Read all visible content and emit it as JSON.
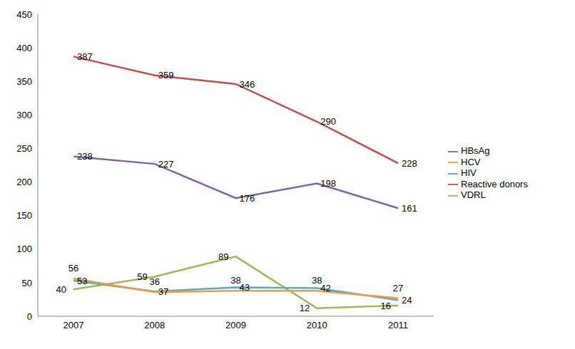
{
  "chart_data": {
    "type": "line",
    "categories": [
      "2007",
      "2008",
      "2009",
      "2010",
      "2011"
    ],
    "series": [
      {
        "name": "Reactive donors",
        "color": "#c0504d",
        "values": [
          387,
          359,
          346,
          290,
          228
        ]
      },
      {
        "name": "VDRL",
        "color": "#9bbb59",
        "values": [
          40,
          59,
          89,
          12,
          16
        ]
      },
      {
        "name": "HBsAg",
        "color": "#8064a2",
        "values": [
          238,
          227,
          176,
          198,
          161
        ]
      },
      {
        "name": "HIV",
        "color": "#4bacc6",
        "values": [
          53,
          37,
          43,
          42,
          24
        ]
      },
      {
        "name": "HCV",
        "color": "#f79646",
        "values": [
          56,
          36,
          38,
          38,
          27
        ]
      }
    ],
    "ylim": [
      0,
      450
    ],
    "yticks": [
      0,
      50,
      100,
      150,
      200,
      250,
      300,
      350,
      400,
      450
    ],
    "grid": false,
    "legend": "right",
    "data_labels": true
  }
}
